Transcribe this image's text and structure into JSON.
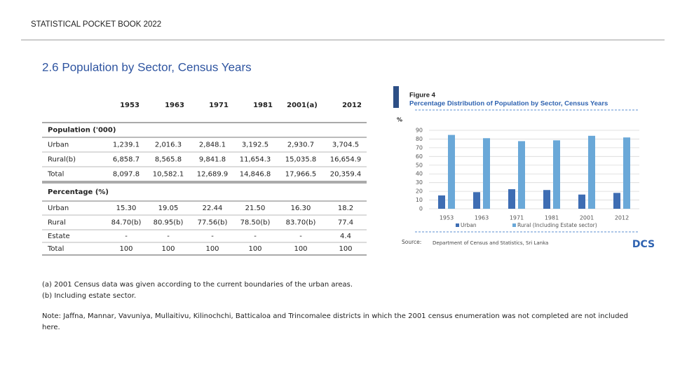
{
  "header": {
    "title": "STATISTICAL POCKET BOOK 2022"
  },
  "section": {
    "title": "2.6  Population by Sector, Census Years"
  },
  "table": {
    "columns": [
      "1953",
      "1963",
      "1971",
      "1981",
      "2001(a)",
      "2012"
    ],
    "groups": [
      {
        "title": "Population ('000)",
        "rows": [
          [
            "Urban",
            "1,239.1",
            "2,016.3",
            "2,848.1",
            "3,192.5",
            "2,930.7",
            "3,704.5"
          ],
          [
            "Rural(b)",
            "6,858.7",
            "8,565.8",
            "9,841.8",
            "11,654.3",
            "15,035.8",
            "16,654.9"
          ],
          [
            "Total",
            "8,097.8",
            "10,582.1",
            "12,689.9",
            "14,846.8",
            "17,966.5",
            "20,359.4"
          ]
        ]
      },
      {
        "title": "Percentage (%)",
        "rows": [
          [
            "Urban",
            "15.30",
            "19.05",
            "22.44",
            "21.50",
            "16.30",
            "18.2"
          ],
          [
            "Rural",
            "84.70(b)",
            "80.95(b)",
            "77.56(b)",
            "78.50(b)",
            "83.70(b)",
            "77.4"
          ],
          [
            "Estate",
            "-",
            "-",
            "-",
            "-",
            "-",
            "4.4"
          ],
          [
            "Total",
            "100",
            "100",
            "100",
            "100",
            "100",
            "100"
          ]
        ]
      }
    ]
  },
  "footnotes": [
    "(a)   2001 Census data was given according to the current boundaries of the urban areas.",
    "(b) Including estate sector."
  ],
  "note": "Note: Jaffna, Mannar, Vavuniya, Mullaitivu, Kilinochchi, Batticaloa and Trincomalee districts in which the  2001 census enumeration was not completed are not included here.",
  "figure": {
    "label": "Figure 4",
    "title": "Percentage Distribution of Population by Sector, Census Years",
    "chart_data": {
      "type": "bar",
      "y_label": "%",
      "categories": [
        "1953",
        "1963",
        "1971",
        "1981",
        "2001",
        "2012"
      ],
      "series": [
        {
          "name": "Urban",
          "color": "#3e6db3",
          "values": [
            15.3,
            19.05,
            22.44,
            21.5,
            16.3,
            18.2
          ]
        },
        {
          "name": "Rural (Including Estate sector)",
          "color": "#6aa8d8",
          "values": [
            84.7,
            80.95,
            77.56,
            78.5,
            83.7,
            81.8
          ]
        }
      ],
      "ylim": [
        0,
        90
      ],
      "yticks": [
        0,
        10,
        20,
        30,
        40,
        50,
        60,
        70,
        80,
        90
      ],
      "grid": true
    },
    "source_label": "Source:",
    "source": "Department of Census and Statistics, Sri Lanka",
    "logo": "DCS"
  }
}
